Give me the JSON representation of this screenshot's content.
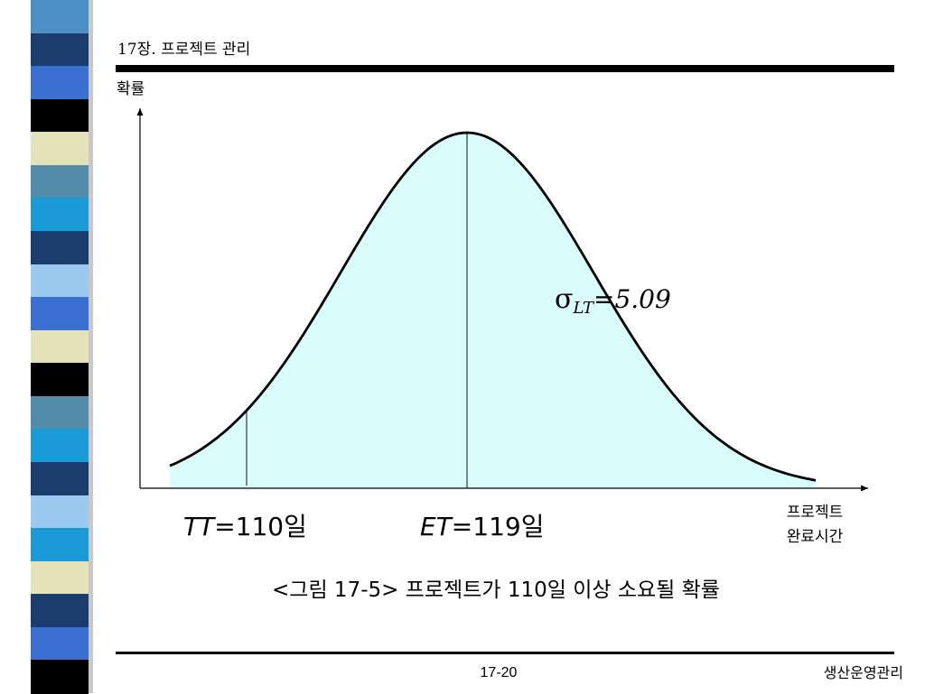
{
  "header": {
    "title": "17장. 프로젝트 관리"
  },
  "diagram": {
    "y_axis_label": "확률",
    "x_axis_label_line1": "프로젝트",
    "x_axis_label_line2": "완료시간",
    "sigma_symbol": "σ",
    "sigma_subscript": "LT",
    "sigma_value": "=5.09",
    "tt_label_var": "TT",
    "tt_label_value": "=110일",
    "et_label_var": "ET",
    "et_label_value": "=119일",
    "caption": "<그림 17-5> 프로젝트가 110일 이상 소요될 확률",
    "fill_color": "#d9fdfd",
    "curve_color": "#000000"
  },
  "footer": {
    "page_number": "17-20",
    "course_name": "생산운영관리"
  },
  "side_strip": {
    "colors": [
      "#4a90c4",
      "#1a3d6e",
      "#3b6fd1",
      "#000000",
      "#e4e2b8",
      "#528ca8",
      "#1a9ad6",
      "#1a3d6e",
      "#9cc9f0",
      "#3b6fd1",
      "#e4e2b8",
      "#000000",
      "#528ca8",
      "#1a9ad6",
      "#1a3d6e",
      "#9cc9f0",
      "#1a9ad6",
      "#e4e2b8",
      "#1a3d6e",
      "#3b6fd1",
      "#000000"
    ]
  }
}
